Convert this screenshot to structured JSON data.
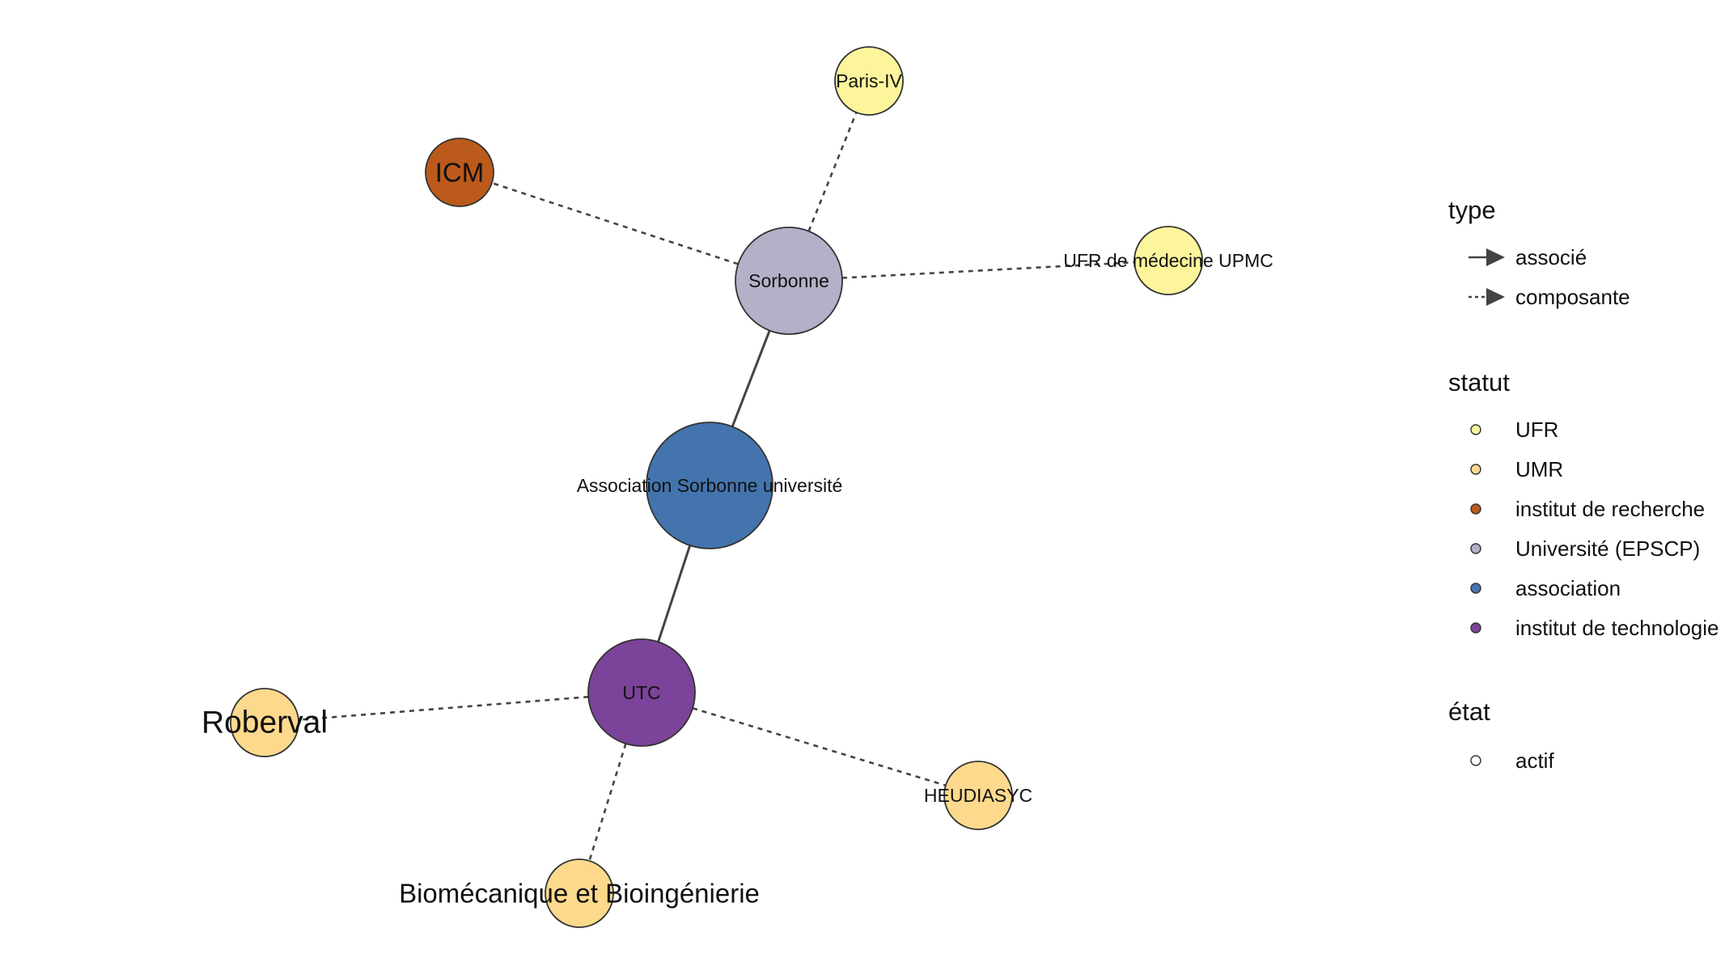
{
  "colors": {
    "UFR": "#fdf59b",
    "UMR": "#fcd98c",
    "institut de recherche": "#bb5a1b",
    "Université (EPSCP)": "#b3b0c8",
    "association": "#4474ad",
    "institut de technologie": "#7b4399",
    "edge": "#444444",
    "node_stroke": "#333333"
  },
  "nodes": [
    {
      "id": "sorbonne",
      "label": "Sorbonne",
      "statut": "Université (EPSCP)"
    },
    {
      "id": "paris4",
      "label": "Paris-IV",
      "statut": "UFR"
    },
    {
      "id": "icm",
      "label": "ICM",
      "statut": "institut de recherche"
    },
    {
      "id": "ufrmed",
      "label": "UFR de médecine UPMC",
      "statut": "UFR"
    },
    {
      "id": "asu",
      "label": "Association Sorbonne université",
      "statut": "association"
    },
    {
      "id": "utc",
      "label": "UTC",
      "statut": "institut de technologie"
    },
    {
      "id": "roberval",
      "label": "Roberval",
      "statut": "UMR"
    },
    {
      "id": "heudiasyc",
      "label": "HEUDIASYC",
      "statut": "UMR"
    },
    {
      "id": "biomeca",
      "label": "Biomécanique et Bioingénierie",
      "statut": "UMR"
    }
  ],
  "edges": [
    {
      "from": "sorbonne",
      "to": "paris4",
      "type": "composante"
    },
    {
      "from": "sorbonne",
      "to": "icm",
      "type": "composante"
    },
    {
      "from": "sorbonne",
      "to": "ufrmed",
      "type": "composante"
    },
    {
      "from": "sorbonne",
      "to": "asu",
      "type": "associé"
    },
    {
      "from": "asu",
      "to": "utc",
      "type": "associé"
    },
    {
      "from": "utc",
      "to": "roberval",
      "type": "composante"
    },
    {
      "from": "utc",
      "to": "heudiasyc",
      "type": "composante"
    },
    {
      "from": "utc",
      "to": "biomeca",
      "type": "composante"
    }
  ],
  "legend": {
    "type_title": "type",
    "type_items": [
      {
        "label": "associé",
        "style": "solid"
      },
      {
        "label": "composante",
        "style": "dashed"
      }
    ],
    "statut_title": "statut",
    "statut_items": [
      {
        "label": "UFR"
      },
      {
        "label": "UMR"
      },
      {
        "label": "institut de recherche"
      },
      {
        "label": "Université (EPSCP)"
      },
      {
        "label": "association"
      },
      {
        "label": "institut de technologie"
      }
    ],
    "etat_title": "état",
    "etat_items": [
      {
        "label": "actif"
      }
    ]
  }
}
